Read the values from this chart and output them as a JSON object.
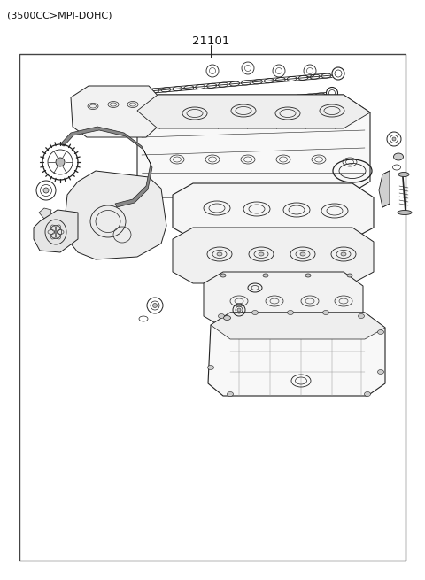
{
  "title_top": "(3500CC>MPI-DOHC)",
  "part_number": "21101",
  "background_color": "#ffffff",
  "border_color": "#333333",
  "text_color": "#111111",
  "fig_width": 4.8,
  "fig_height": 6.55,
  "dpi": 100,
  "title_fontsize": 8.0,
  "part_number_fontsize": 9.5,
  "line_color": "#222222",
  "light_gray": "#dddddd",
  "mid_gray": "#aaaaaa"
}
